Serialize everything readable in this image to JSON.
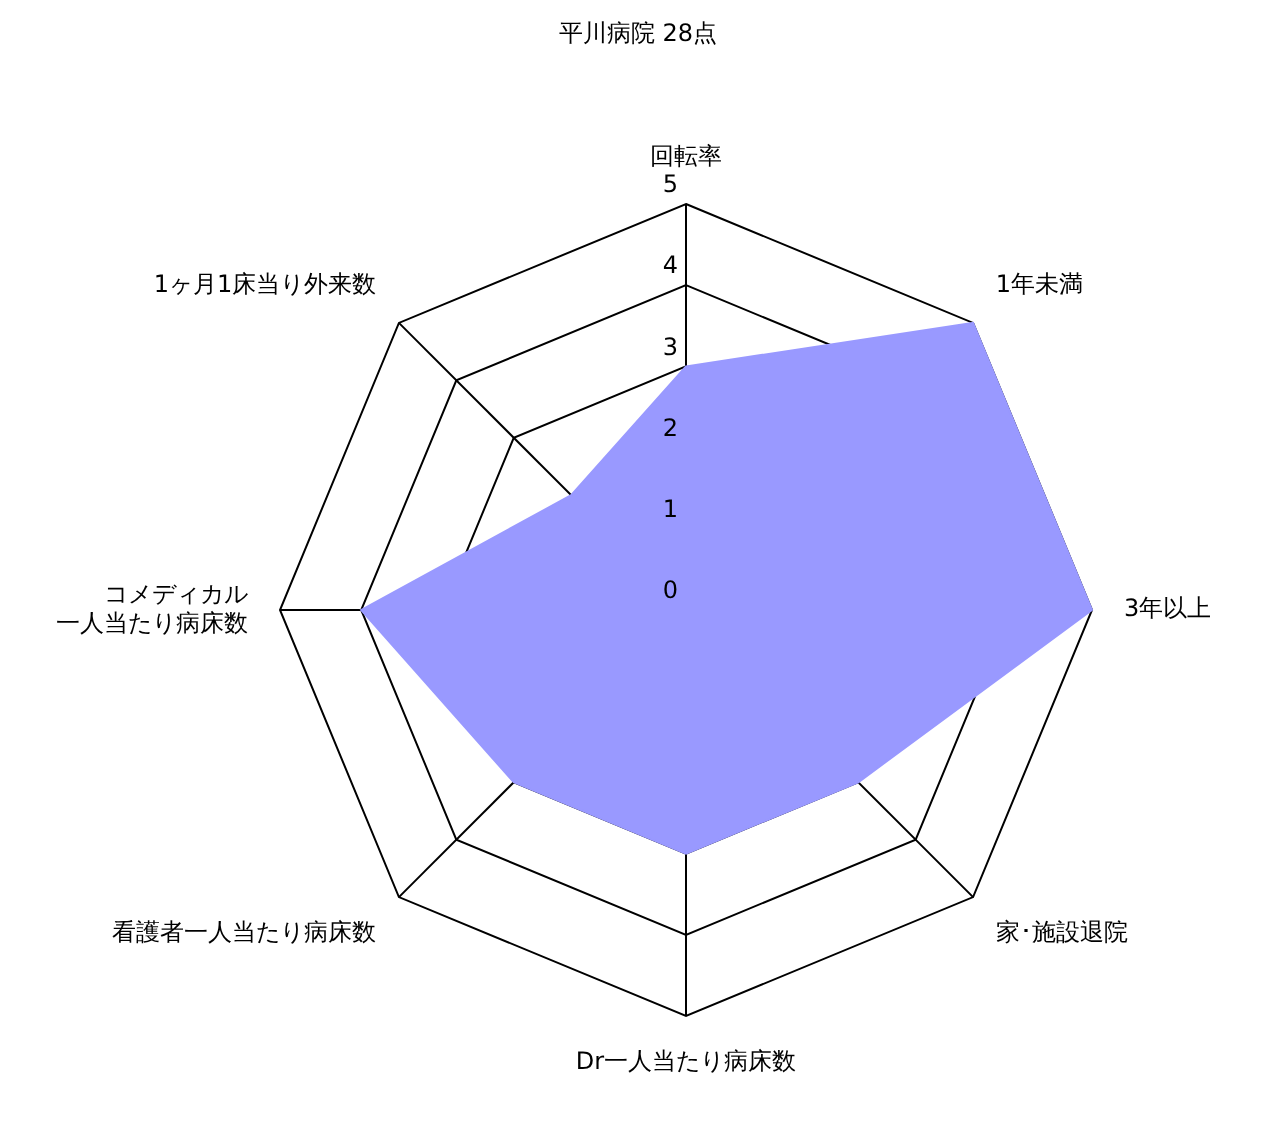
{
  "chart_data": {
    "type": "radar",
    "title": "平川病院 28点",
    "categories": [
      "回転率",
      "1年未満",
      "3年以上",
      "家･施設退院",
      "Dr一人当たり病床数",
      "看護者一人当たり病床数",
      "コメディカル一人当たり病床数",
      "1ヶ月1床当り外来数"
    ],
    "series": [
      {
        "color": "#9999ff",
        "values": [
          3,
          5,
          5,
          3,
          3,
          3,
          4,
          2
        ]
      }
    ],
    "ylim": [
      0,
      5
    ],
    "yticks": [
      0,
      1,
      2,
      3,
      4,
      5
    ],
    "grid": true,
    "legend": false
  }
}
